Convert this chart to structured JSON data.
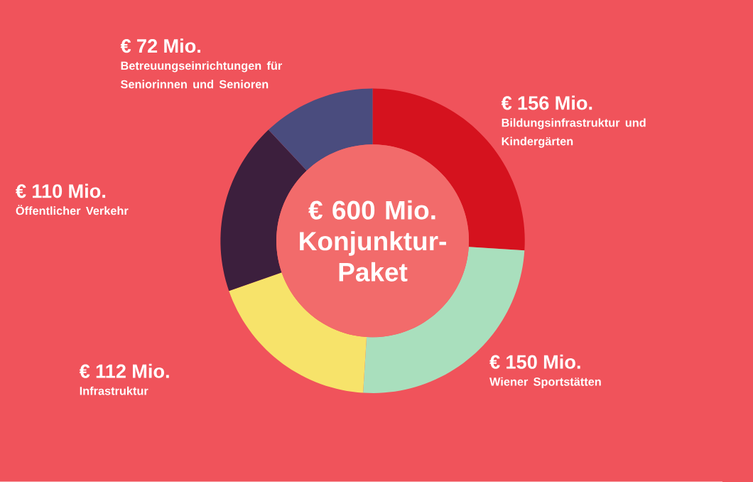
{
  "chart_data": {
    "type": "donut",
    "title": "€ 600 Mio. Konjunktur-Paket",
    "categories": [
      "Bildungsinfrastruktur und Kindergärten",
      "Wiener Sportstätten",
      "Infrastruktur",
      "Öffentlicher Verkehr",
      "Betreuungseinrichtungen für Seniorinnen und Senioren"
    ],
    "values": [
      156,
      150,
      112,
      110,
      72
    ],
    "value_labels": [
      "€ 156 Mio.",
      "€ 150 Mio.",
      "€ 112 Mio.",
      "€ 110 Mio.",
      "€ 72 Mio."
    ],
    "colors": [
      "#d5121e",
      "#a9dfbd",
      "#f7e36a",
      "#3c1f3d",
      "#4a4c7e"
    ]
  }
}
